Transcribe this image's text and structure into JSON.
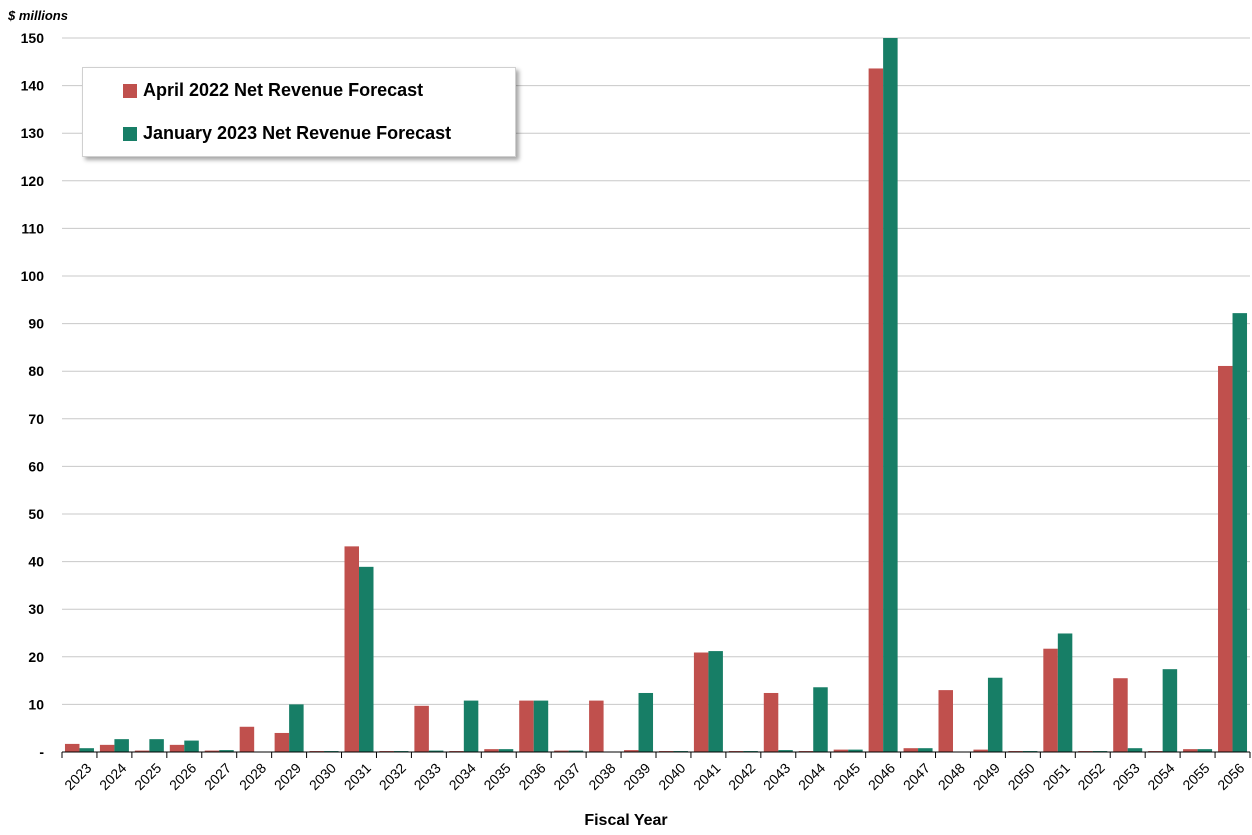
{
  "chart_data": {
    "type": "bar",
    "unit_label": "$ millions",
    "xlabel": "Fiscal Year",
    "ylabel": "",
    "ylim": [
      0,
      150
    ],
    "yticks": [
      0,
      10,
      20,
      30,
      40,
      50,
      60,
      70,
      80,
      90,
      100,
      110,
      120,
      130,
      140,
      150
    ],
    "ytick_labels": [
      "-",
      "10",
      "20",
      "30",
      "40",
      "50",
      "60",
      "70",
      "80",
      "90",
      "100",
      "110",
      "120",
      "130",
      "140",
      "150"
    ],
    "grid": true,
    "legend_position": "top-left",
    "categories": [
      "2023",
      "2024",
      "2025",
      "2026",
      "2027",
      "2028",
      "2029",
      "2030",
      "2031",
      "2032",
      "2033",
      "2034",
      "2035",
      "2036",
      "2037",
      "2038",
      "2039",
      "2040",
      "2041",
      "2042",
      "2043",
      "2044",
      "2045",
      "2046",
      "2047",
      "2048",
      "2049",
      "2050",
      "2051",
      "2052",
      "2053",
      "2054",
      "2055",
      "2056"
    ],
    "series": [
      {
        "name": "April 2022 Net Revenue Forecast",
        "color": "#c0504d",
        "values": [
          1.7,
          1.5,
          0.3,
          1.5,
          0.3,
          5.3,
          4.0,
          0.2,
          43.2,
          0.2,
          9.7,
          0.2,
          0.6,
          10.8,
          0.3,
          10.8,
          0.4,
          0.2,
          20.9,
          0.2,
          12.4,
          0.2,
          0.5,
          143.6,
          0.8,
          13.0,
          0.5,
          0.2,
          21.7,
          0.2,
          15.5,
          0.2,
          0.6,
          81.1
        ]
      },
      {
        "name": "January 2023 Net Revenue Forecast",
        "color": "#177e66",
        "values": [
          0.8,
          2.7,
          2.7,
          2.4,
          0.4,
          0.0,
          10.0,
          0.2,
          38.9,
          0.2,
          0.3,
          10.8,
          0.6,
          10.8,
          0.3,
          0.0,
          12.4,
          0.2,
          21.2,
          0.2,
          0.4,
          13.6,
          0.5,
          150.0,
          0.8,
          0.0,
          15.6,
          0.2,
          24.9,
          0.2,
          0.8,
          17.4,
          0.6,
          92.2
        ]
      }
    ]
  }
}
